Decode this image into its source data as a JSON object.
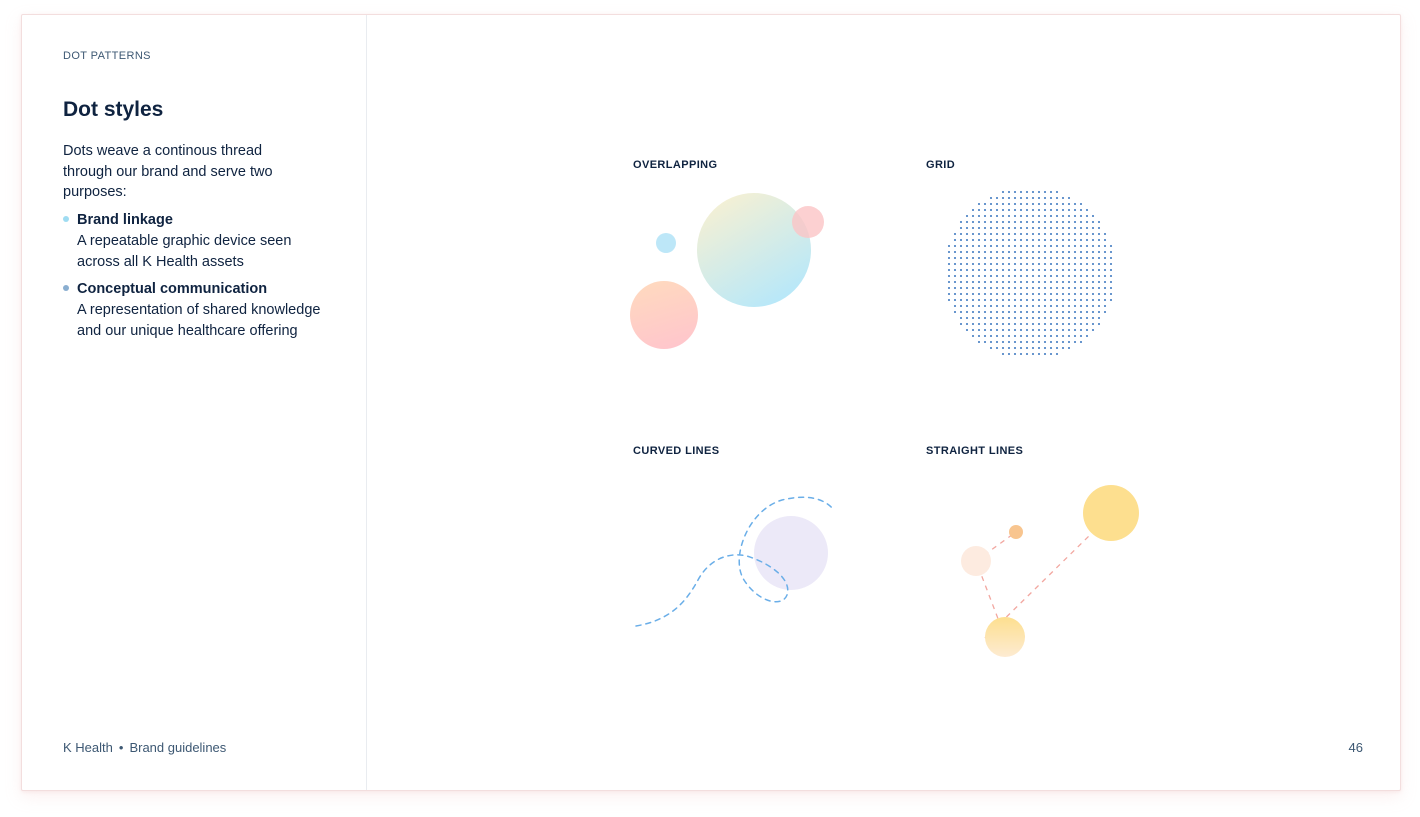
{
  "sidebar": {
    "section_label": "DOT PATTERNS",
    "title": "Dot styles",
    "intro": "Dots weave a continous thread through our brand and serve two purposes:",
    "bullets": [
      {
        "title": "Brand linkage",
        "description": "A repeatable graphic device seen across all K Health assets",
        "dot_color": "#9fdcf2"
      },
      {
        "title": "Conceptual communication",
        "description": "A representation of shared knowledge and our unique healthcare offering",
        "dot_color": "#8aaed0"
      }
    ]
  },
  "footer": {
    "brand": "K Health",
    "separator": "•",
    "doc_title": "Brand guidelines",
    "page_number": "46"
  },
  "styles": [
    {
      "label": "OVERLAPPING"
    },
    {
      "label": "GRID"
    },
    {
      "label": "CURVED LINES"
    },
    {
      "label": "STRAIGHT LINES"
    }
  ],
  "colors": {
    "navy": "#0f2340",
    "grid_dot": "#3f79c0",
    "curve_dash": "#6aaee8",
    "line_dash": "#f2a7a0",
    "yellow": "#fddf8f",
    "lavender": "#ece9f8"
  }
}
